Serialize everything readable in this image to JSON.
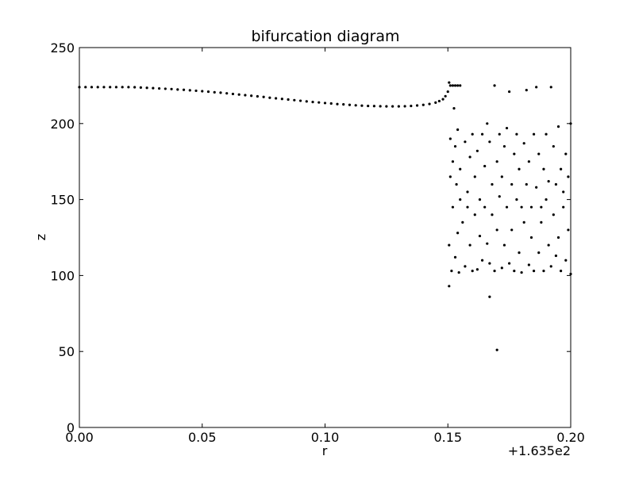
{
  "chart_data": {
    "type": "scatter",
    "title": "bifurcation diagram",
    "x_label": "r",
    "y_label": "z",
    "x_offset_text": "+1.635e2",
    "color": "#000000",
    "xlim": [
      0,
      0.2
    ],
    "ylim": [
      0,
      250
    ],
    "xticks": [
      {
        "value": 0,
        "label": "0.00"
      },
      0.05,
      {
        "value": 0.1,
        "label": "0.10"
      },
      0.15,
      {
        "value": 0.2,
        "label": "0.20"
      }
    ],
    "yticks": [
      0,
      50,
      100,
      150,
      200,
      250
    ],
    "x": [
      0,
      0.0025,
      0.005,
      0.0075,
      0.01,
      0.0125,
      0.015,
      0.0175,
      0.02,
      0.0225,
      0.025,
      0.0275,
      0.03,
      0.0325,
      0.035,
      0.0375,
      0.04,
      0.0425,
      0.045,
      0.0475,
      0.05,
      0.0525,
      0.055,
      0.0575,
      0.06,
      0.0625,
      0.065,
      0.0675,
      0.07,
      0.0725,
      0.075,
      0.0775,
      0.08,
      0.0825,
      0.085,
      0.0875,
      0.09,
      0.0925,
      0.095,
      0.0975,
      0.1,
      0.1025,
      0.105,
      0.1075,
      0.11,
      0.1125,
      0.115,
      0.1175,
      0.12,
      0.1225,
      0.125,
      0.1275,
      0.13,
      0.1325,
      0.135,
      0.1375,
      0.14,
      0.1425,
      0.145,
      0.1465,
      0.148,
      0.149,
      0.15,
      0.1505,
      0.151,
      0.152,
      0.153,
      0.154,
      0.155,
      0.1505,
      0.1505,
      0.151,
      0.151,
      0.1515,
      0.152,
      0.152,
      0.1525,
      0.153,
      0.153,
      0.1535,
      0.154,
      0.154,
      0.1545,
      0.155,
      0.155,
      0.156,
      0.157,
      0.157,
      0.158,
      0.158,
      0.159,
      0.159,
      0.16,
      0.16,
      0.161,
      0.161,
      0.162,
      0.162,
      0.163,
      0.163,
      0.164,
      0.164,
      0.165,
      0.165,
      0.166,
      0.166,
      0.167,
      0.167,
      0.167,
      0.168,
      0.168,
      0.169,
      0.169,
      0.17,
      0.17,
      0.17,
      0.171,
      0.171,
      0.172,
      0.172,
      0.173,
      0.173,
      0.174,
      0.174,
      0.175,
      0.175,
      0.176,
      0.176,
      0.177,
      0.177,
      0.178,
      0.178,
      0.179,
      0.179,
      0.18,
      0.18,
      0.181,
      0.181,
      0.182,
      0.182,
      0.183,
      0.183,
      0.184,
      0.184,
      0.185,
      0.185,
      0.186,
      0.186,
      0.187,
      0.187,
      0.188,
      0.188,
      0.189,
      0.189,
      0.19,
      0.19,
      0.191,
      0.191,
      0.192,
      0.192,
      0.193,
      0.193,
      0.194,
      0.194,
      0.195,
      0.195,
      0.196,
      0.196,
      0.197,
      0.197,
      0.198,
      0.198,
      0.199,
      0.199,
      0.2,
      0.2
    ],
    "values": [
      224,
      224,
      224,
      224,
      224,
      224,
      224,
      224,
      224,
      223.9,
      223.7,
      223.5,
      223.3,
      223.1,
      222.9,
      222.7,
      222.4,
      222.2,
      221.9,
      221.6,
      221.3,
      221,
      220.6,
      220.3,
      219.9,
      219.5,
      219.1,
      218.7,
      218.3,
      217.9,
      217.5,
      217,
      216.6,
      216.2,
      215.8,
      215.4,
      215,
      214.6,
      214.2,
      213.9,
      213.5,
      213.2,
      212.8,
      212.6,
      212.3,
      212,
      211.8,
      211.6,
      211.5,
      211.4,
      211.3,
      211.3,
      211.3,
      211.4,
      211.6,
      211.9,
      212.3,
      212.9,
      213.8,
      214.8,
      216,
      218,
      221,
      227,
      225,
      225,
      225,
      225,
      225,
      93,
      120,
      165,
      190,
      103,
      145,
      175,
      210,
      112,
      185,
      160,
      128,
      196,
      102,
      150,
      170,
      135,
      106,
      188,
      155,
      145,
      120,
      178,
      103,
      193,
      165,
      140,
      104,
      182,
      150,
      126,
      193,
      110,
      172,
      145,
      200,
      121,
      86,
      108,
      188,
      160,
      140,
      225,
      103,
      51,
      175,
      130,
      152,
      193,
      105,
      165,
      120,
      185,
      145,
      197,
      221,
      108,
      160,
      130,
      180,
      103,
      150,
      193,
      115,
      170,
      145,
      102,
      187,
      135,
      160,
      222,
      107,
      175,
      145,
      125,
      193,
      103,
      224,
      158,
      115,
      180,
      145,
      135,
      103,
      170,
      193,
      150,
      120,
      162,
      224,
      106,
      185,
      140,
      160,
      113,
      198,
      125,
      170,
      103,
      145,
      155,
      180,
      110,
      130,
      165,
      101,
      200
    ]
  }
}
